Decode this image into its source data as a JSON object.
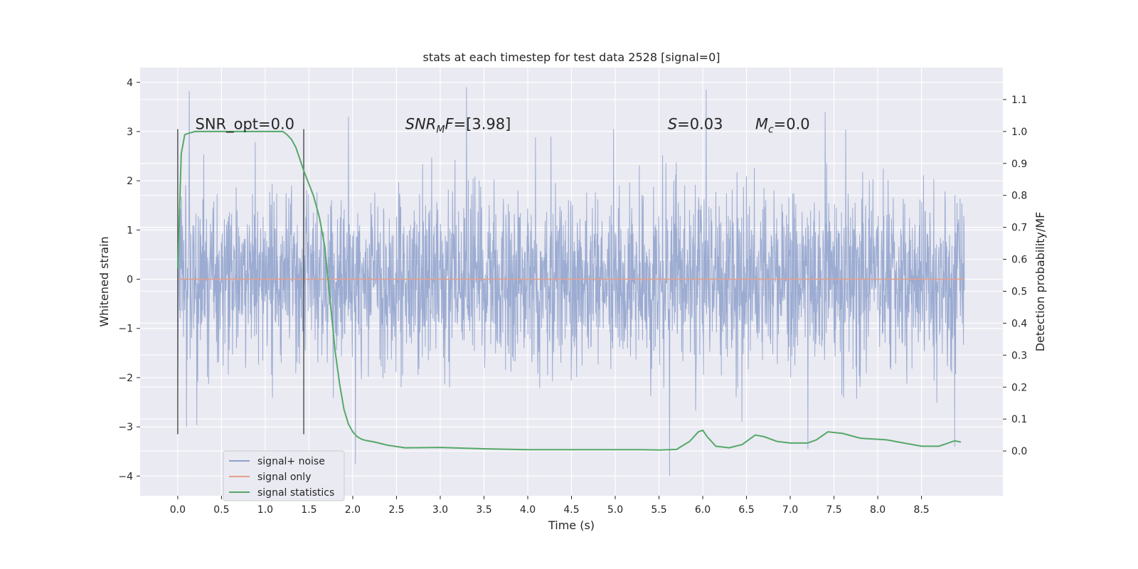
{
  "chart_data": {
    "type": "line",
    "title": "stats at each timestep for test data 2528 [signal=0]",
    "xlabel": "Time (s)",
    "ylabel": "Whitened strain",
    "y2label": "Detection probability/MF",
    "xlim": [
      -0.43,
      9.43
    ],
    "ylim": [
      -4.4,
      4.3
    ],
    "y2lim": [
      -0.14,
      1.2
    ],
    "xticks": [
      "0.0",
      "0.5",
      "1.0",
      "1.5",
      "2.0",
      "2.5",
      "3.0",
      "3.5",
      "4.0",
      "4.5",
      "5.0",
      "5.5",
      "6.0",
      "6.5",
      "7.0",
      "7.5",
      "8.0",
      "8.5"
    ],
    "yticks": [
      "4",
      "3",
      "2",
      "1",
      "0",
      "−1",
      "−2",
      "−3",
      "−4"
    ],
    "y2ticks": [
      "1.1",
      "1.0",
      "0.9",
      "0.8",
      "0.7",
      "0.6",
      "0.5",
      "0.4",
      "0.3",
      "0.2",
      "0.1",
      "0.0"
    ],
    "grid": true,
    "legend_position": "lower-left",
    "annotations": [
      {
        "text": "SNR_opt=0.0",
        "x": 0.2,
        "y": 3.05
      },
      {
        "text": "SNR_MF=[3.98]",
        "x": 2.6,
        "y": 3.05
      },
      {
        "text": "S=0.03",
        "x": 5.6,
        "y": 3.05
      },
      {
        "text": "M_c=0.0",
        "x": 6.6,
        "y": 3.05
      }
    ],
    "vlines": [
      {
        "x": 0.0,
        "ymin": -3.15,
        "ymax": 3.05
      },
      {
        "x": 1.44,
        "ymin": -3.15,
        "ymax": 3.05
      }
    ],
    "series": [
      {
        "name": "signal+ noise",
        "color": "#8da0cb",
        "axis": "left",
        "x_range": [
          0.0,
          8.99
        ],
        "y_min": -4.0,
        "y_max": 3.9,
        "peaks": [
          {
            "x": 0.13,
            "y": 3.82
          },
          {
            "x": 3.3,
            "y": 3.9
          },
          {
            "x": 6.04,
            "y": 3.85
          },
          {
            "x": 7.4,
            "y": 3.4
          },
          {
            "x": 1.95,
            "y": 3.3
          },
          {
            "x": 4.98,
            "y": 3.05
          },
          {
            "x": 5.62,
            "y": -4.0
          },
          {
            "x": 2.03,
            "y": -3.75
          },
          {
            "x": 8.88,
            "y": -3.4
          },
          {
            "x": 7.2,
            "y": -3.45
          },
          {
            "x": 0.1,
            "y": -3.0
          }
        ]
      },
      {
        "name": "signal only",
        "color": "#e5a08a",
        "axis": "left",
        "x": [
          0.0,
          8.99
        ],
        "y": [
          0.0,
          0.0
        ]
      },
      {
        "name": "signal statistics",
        "color": "#55a868",
        "axis": "right",
        "x": [
          0.0,
          0.04,
          0.08,
          0.13,
          0.2,
          0.3,
          0.5,
          0.8,
          1.0,
          1.1,
          1.2,
          1.25,
          1.3,
          1.35,
          1.45,
          1.55,
          1.62,
          1.68,
          1.72,
          1.76,
          1.8,
          1.85,
          1.9,
          1.95,
          2.0,
          2.05,
          2.1,
          2.15,
          2.25,
          2.4,
          2.6,
          3.0,
          3.5,
          4.0,
          4.5,
          5.0,
          5.3,
          5.5,
          5.7,
          5.85,
          5.95,
          6.0,
          6.05,
          6.15,
          6.3,
          6.45,
          6.6,
          6.7,
          6.85,
          7.0,
          7.2,
          7.3,
          7.43,
          7.6,
          7.8,
          8.1,
          8.3,
          8.5,
          8.7,
          8.88,
          8.95
        ],
        "y": [
          0.57,
          0.93,
          0.99,
          0.995,
          1.0,
          1.0,
          1.0,
          1.0,
          1.0,
          1.0,
          1.0,
          0.99,
          0.975,
          0.95,
          0.87,
          0.8,
          0.73,
          0.64,
          0.53,
          0.42,
          0.31,
          0.21,
          0.13,
          0.085,
          0.06,
          0.045,
          0.037,
          0.033,
          0.028,
          0.018,
          0.01,
          0.011,
          0.007,
          0.004,
          0.004,
          0.004,
          0.004,
          0.003,
          0.005,
          0.03,
          0.06,
          0.065,
          0.045,
          0.015,
          0.01,
          0.02,
          0.05,
          0.045,
          0.03,
          0.025,
          0.025,
          0.035,
          0.06,
          0.055,
          0.04,
          0.035,
          0.025,
          0.015,
          0.015,
          0.032,
          0.028
        ]
      }
    ]
  }
}
